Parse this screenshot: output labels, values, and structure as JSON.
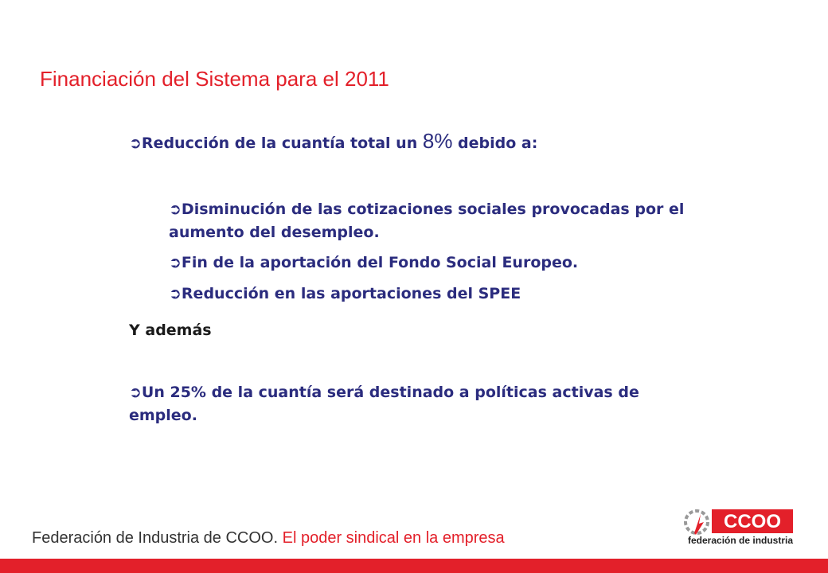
{
  "slide": {
    "title": "Financiación del Sistema para el 2011",
    "bullet_main_pre": "Reducción de la cuantía total un ",
    "bullet_main_big": "8%",
    "bullet_main_post": " debido a:",
    "sub_bullets": [
      "Disminución de las cotizaciones sociales provocadas por el",
      "aumento del desempleo.",
      "Fin de la aportación del Fondo Social Europeo.",
      "Reducción en las aportaciones del SPEE"
    ],
    "ademas": "Y además",
    "last_bullet_line1": "Un 25% de la cuantía será destinado a políticas activas de",
    "last_bullet_line2": "empleo."
  },
  "footer": {
    "left_text": "Federación de Industria de CCOO.",
    "right_text": "El poder sindical en la empresa",
    "logo_text": "CCOO",
    "logo_subtitle": "federación de industria"
  },
  "colors": {
    "title": "#e3202a",
    "body_text": "#2b2c7e",
    "brand_red": "#e3202a"
  },
  "icons": {
    "bullet": "right-arrow-icon",
    "logo": "ccoo-logo"
  }
}
